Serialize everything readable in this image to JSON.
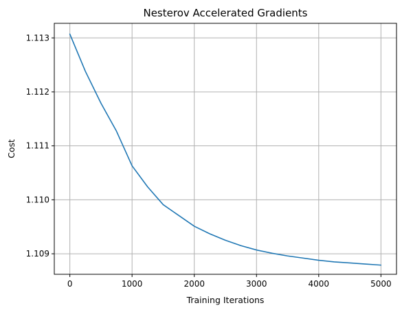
{
  "chart_data": {
    "type": "line",
    "title": "Nesterov Accelerated Gradients",
    "xlabel": "Training Iterations",
    "ylabel": "Cost",
    "xlim": [
      -250,
      5250
    ],
    "ylim": [
      1.10862,
      1.11327
    ],
    "xticks": [
      0,
      1000,
      2000,
      3000,
      4000,
      5000
    ],
    "xtick_labels": [
      "0",
      "1000",
      "2000",
      "3000",
      "4000",
      "5000"
    ],
    "yticks": [
      1.109,
      1.11,
      1.111,
      1.112,
      1.113
    ],
    "ytick_labels": [
      "1.109",
      "1.110",
      "1.111",
      "1.112",
      "1.113"
    ],
    "grid": true,
    "series": [
      {
        "color": "#1f77b4",
        "x": [
          0,
          250,
          500,
          750,
          1000,
          1250,
          1500,
          1750,
          2000,
          2250,
          2500,
          2750,
          3000,
          3250,
          3500,
          3750,
          4000,
          4250,
          4500,
          4750,
          5000
        ],
        "y": [
          1.11307,
          1.11238,
          1.11179,
          1.11127,
          1.11063,
          1.11024,
          1.10991,
          1.10971,
          1.10951,
          1.10937,
          1.10925,
          1.10915,
          1.10907,
          1.10901,
          1.10896,
          1.10892,
          1.10888,
          1.10885,
          1.10883,
          1.10881,
          1.10879
        ]
      }
    ]
  }
}
